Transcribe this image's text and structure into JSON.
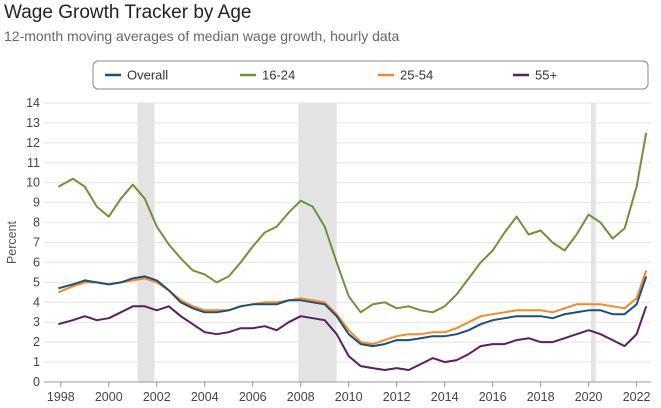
{
  "title": "Wage Growth Tracker by Age",
  "subtitle": "12-month moving averages of median wage growth, hourly data",
  "chart_data": {
    "type": "line",
    "ylabel": "Percent",
    "xlim": [
      1997.3,
      2022.6
    ],
    "ylim": [
      0,
      14
    ],
    "x_ticks": [
      1998,
      2000,
      2002,
      2004,
      2006,
      2008,
      2010,
      2012,
      2014,
      2016,
      2018,
      2020,
      2022
    ],
    "y_ticks": [
      0,
      1,
      2,
      3,
      4,
      5,
      6,
      7,
      8,
      9,
      10,
      11,
      12,
      13,
      14
    ],
    "grid": "horizontal",
    "legend_position": "top",
    "recession_bands": [
      [
        2001.2,
        2001.9
      ],
      [
        2007.9,
        2009.5
      ],
      [
        2020.1,
        2020.3
      ]
    ],
    "series": [
      {
        "name": "Overall",
        "color": "#1f4e79",
        "x": [
          1997.9,
          1998.5,
          1999,
          1999.5,
          2000,
          2000.5,
          2001,
          2001.5,
          2002,
          2002.5,
          2003,
          2003.5,
          2004,
          2004.5,
          2005,
          2005.5,
          2006,
          2006.5,
          2007,
          2007.5,
          2008,
          2008.5,
          2009,
          2009.5,
          2010,
          2010.5,
          2011,
          2011.5,
          2012,
          2012.5,
          2013,
          2013.5,
          2014,
          2014.5,
          2015,
          2015.5,
          2016,
          2016.5,
          2017,
          2017.5,
          2018,
          2018.5,
          2019,
          2019.5,
          2020,
          2020.5,
          2021,
          2021.5,
          2022,
          2022.4
        ],
        "y": [
          4.7,
          4.9,
          5.1,
          5.0,
          4.9,
          5.0,
          5.2,
          5.3,
          5.1,
          4.6,
          4.0,
          3.7,
          3.5,
          3.5,
          3.6,
          3.8,
          3.9,
          3.9,
          3.9,
          4.1,
          4.1,
          4.0,
          3.9,
          3.3,
          2.4,
          1.9,
          1.8,
          1.9,
          2.1,
          2.1,
          2.2,
          2.3,
          2.3,
          2.4,
          2.6,
          2.9,
          3.1,
          3.2,
          3.3,
          3.3,
          3.3,
          3.2,
          3.4,
          3.5,
          3.6,
          3.6,
          3.4,
          3.4,
          3.9,
          5.3
        ]
      },
      {
        "name": "16-24",
        "color": "#70913a",
        "x": [
          1997.9,
          1998.5,
          1999,
          1999.5,
          2000,
          2000.5,
          2001,
          2001.5,
          2002,
          2002.5,
          2003,
          2003.5,
          2004,
          2004.5,
          2005,
          2005.5,
          2006,
          2006.5,
          2007,
          2007.5,
          2008,
          2008.5,
          2009,
          2009.5,
          2010,
          2010.5,
          2011,
          2011.5,
          2012,
          2012.5,
          2013,
          2013.5,
          2014,
          2014.5,
          2015,
          2015.5,
          2016,
          2016.5,
          2017,
          2017.5,
          2018,
          2018.5,
          2019,
          2019.5,
          2020,
          2020.5,
          2021,
          2021.5,
          2022,
          2022.4
        ],
        "y": [
          9.8,
          10.2,
          9.8,
          8.8,
          8.3,
          9.2,
          9.9,
          9.2,
          7.8,
          6.9,
          6.2,
          5.6,
          5.4,
          5.0,
          5.3,
          6.0,
          6.8,
          7.5,
          7.8,
          8.5,
          9.1,
          8.8,
          7.8,
          6.0,
          4.3,
          3.5,
          3.9,
          4.0,
          3.7,
          3.8,
          3.6,
          3.5,
          3.8,
          4.4,
          5.2,
          6.0,
          6.6,
          7.5,
          8.3,
          7.4,
          7.6,
          7.0,
          6.6,
          7.4,
          8.4,
          8.0,
          7.2,
          7.7,
          9.8,
          12.5
        ]
      },
      {
        "name": "25-54",
        "color": "#f08a2c",
        "x": [
          1997.9,
          1998.5,
          1999,
          1999.5,
          2000,
          2000.5,
          2001,
          2001.5,
          2002,
          2002.5,
          2003,
          2003.5,
          2004,
          2004.5,
          2005,
          2005.5,
          2006,
          2006.5,
          2007,
          2007.5,
          2008,
          2008.5,
          2009,
          2009.5,
          2010,
          2010.5,
          2011,
          2011.5,
          2012,
          2012.5,
          2013,
          2013.5,
          2014,
          2014.5,
          2015,
          2015.5,
          2016,
          2016.5,
          2017,
          2017.5,
          2018,
          2018.5,
          2019,
          2019.5,
          2020,
          2020.5,
          2021,
          2021.5,
          2022,
          2022.4
        ],
        "y": [
          4.5,
          4.8,
          5.0,
          5.0,
          4.9,
          5.0,
          5.1,
          5.2,
          5.0,
          4.6,
          4.1,
          3.8,
          3.6,
          3.6,
          3.6,
          3.8,
          3.9,
          4.0,
          4.0,
          4.1,
          4.2,
          4.1,
          4.0,
          3.4,
          2.6,
          2.0,
          1.9,
          2.1,
          2.3,
          2.4,
          2.4,
          2.5,
          2.5,
          2.7,
          3.0,
          3.3,
          3.4,
          3.5,
          3.6,
          3.6,
          3.6,
          3.5,
          3.7,
          3.9,
          3.9,
          3.9,
          3.8,
          3.7,
          4.2,
          5.6
        ]
      },
      {
        "name": "55+",
        "color": "#5b1f5c",
        "x": [
          1997.9,
          1998.5,
          1999,
          1999.5,
          2000,
          2000.5,
          2001,
          2001.5,
          2002,
          2002.5,
          2003,
          2003.5,
          2004,
          2004.5,
          2005,
          2005.5,
          2006,
          2006.5,
          2007,
          2007.5,
          2008,
          2008.5,
          2009,
          2009.5,
          2010,
          2010.5,
          2011,
          2011.5,
          2012,
          2012.5,
          2013,
          2013.5,
          2014,
          2014.5,
          2015,
          2015.5,
          2016,
          2016.5,
          2017,
          2017.5,
          2018,
          2018.5,
          2019,
          2019.5,
          2020,
          2020.5,
          2021,
          2021.5,
          2022,
          2022.4
        ],
        "y": [
          2.9,
          3.1,
          3.3,
          3.1,
          3.2,
          3.5,
          3.8,
          3.8,
          3.6,
          3.8,
          3.3,
          2.9,
          2.5,
          2.4,
          2.5,
          2.7,
          2.7,
          2.8,
          2.6,
          3.0,
          3.3,
          3.2,
          3.1,
          2.4,
          1.3,
          0.8,
          0.7,
          0.6,
          0.7,
          0.6,
          0.9,
          1.2,
          1.0,
          1.1,
          1.4,
          1.8,
          1.9,
          1.9,
          2.1,
          2.2,
          2.0,
          2.0,
          2.2,
          2.4,
          2.6,
          2.4,
          2.1,
          1.8,
          2.4,
          3.8
        ]
      }
    ]
  }
}
